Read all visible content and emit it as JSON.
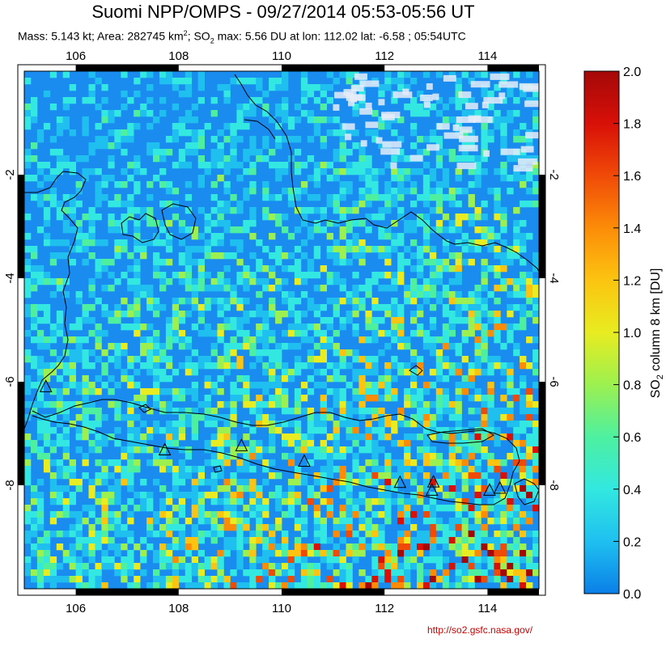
{
  "header": {
    "title": "Suomi NPP/OMPS - 09/27/2014 05:53-05:56 UT",
    "subtitle_pre": "Mass: 5.143 kt; Area: 282745 km",
    "subtitle_sup": "2",
    "subtitle_mid": "; SO",
    "subtitle_sub": "2",
    "subtitle_post": " max: 5.56 DU at lon: 112.02 lat: -6.58 ; 05:54UTC"
  },
  "map": {
    "lon_range": [
      105,
      115
    ],
    "lat_range": [
      -10,
      0
    ],
    "lon_ticks": [
      "106",
      "108",
      "110",
      "112",
      "114"
    ],
    "lat_ticks": [
      "-2",
      "-4",
      "-6",
      "-8"
    ],
    "volcano_marker": "triangle-outline",
    "volcanoes": [
      {
        "lon": 105.42,
        "lat": -6.1
      },
      {
        "lon": 107.73,
        "lat": -7.32
      },
      {
        "lon": 109.22,
        "lat": -7.24
      },
      {
        "lon": 110.44,
        "lat": -7.54
      },
      {
        "lon": 112.3,
        "lat": -7.95
      },
      {
        "lon": 112.92,
        "lat": -8.1
      },
      {
        "lon": 112.95,
        "lat": -7.94
      },
      {
        "lon": 114.04,
        "lat": -8.1
      },
      {
        "lon": 114.24,
        "lat": -8.06
      }
    ]
  },
  "colorbar": {
    "label_pre": "SO",
    "label_sub": "2",
    "label_post": " column 8 km [DU]",
    "min": 0.0,
    "max": 2.0,
    "ticks": [
      "0.0",
      "0.2",
      "0.4",
      "0.6",
      "0.8",
      "1.0",
      "1.2",
      "1.4",
      "1.6",
      "1.8",
      "2.0"
    ],
    "colors": [
      "#0a7fe8",
      "#1fc0f0",
      "#32e8e0",
      "#4ef0a0",
      "#9cf050",
      "#e8ec20",
      "#fcc410",
      "#fc8c08",
      "#f04a08",
      "#d81008",
      "#a40808"
    ]
  },
  "footer": {
    "credit": "http://so2.gsfc.nasa.gov/"
  },
  "style": {
    "background_color": "#1a8cf0",
    "cloud_color": "#e6ecf8",
    "coastline_color": "#000000"
  }
}
